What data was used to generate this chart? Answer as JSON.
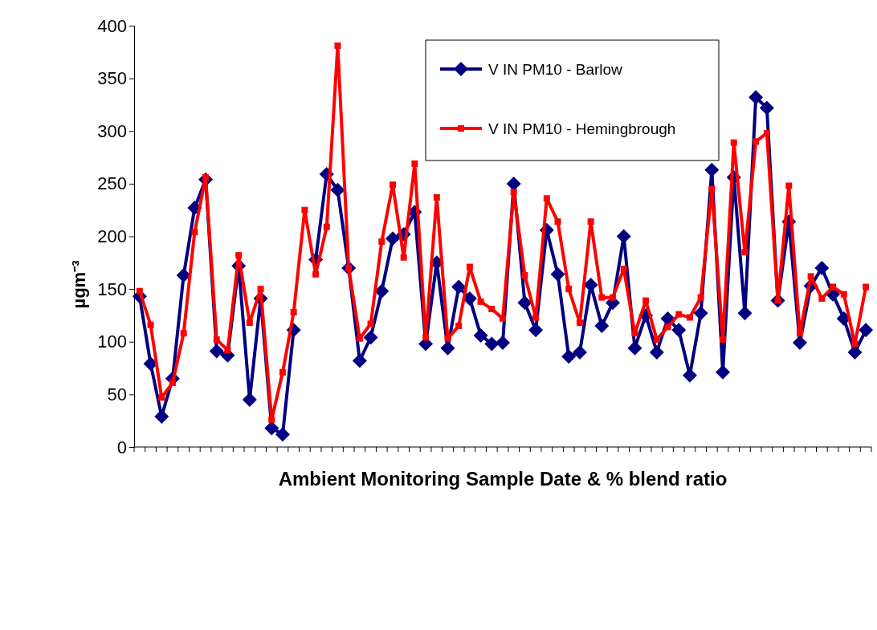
{
  "chart_data": {
    "type": "line",
    "xlabel": "Ambient Monitoring Sample Date & % blend ratio",
    "ylabel": "µgm⁻³",
    "categories": [
      null,
      null,
      null,
      null,
      null,
      null,
      null,
      null,
      null,
      null,
      null,
      null,
      null,
      null,
      null,
      null,
      null,
      null,
      null,
      null,
      null,
      null,
      null,
      null,
      null,
      null,
      null,
      null,
      null,
      null,
      null,
      null,
      null,
      null,
      null,
      null,
      null,
      null,
      null,
      null,
      null,
      null,
      null,
      null,
      null,
      null,
      null,
      null,
      null,
      null,
      null,
      null,
      null,
      null,
      null,
      null,
      null,
      null,
      null,
      null,
      null,
      null,
      null,
      null,
      null,
      null,
      null
    ],
    "series": [
      {
        "name": "V  IN PM10 - Barlow",
        "color": "#000080",
        "marker": "diamond",
        "values": [
          143,
          79,
          29,
          65,
          163,
          227,
          254,
          91,
          87,
          172,
          45,
          141,
          18,
          12,
          111,
          null,
          178,
          259,
          244,
          170,
          82,
          104,
          148,
          198,
          202,
          223,
          98,
          175,
          94,
          152,
          141,
          106,
          98,
          99,
          250,
          137,
          111,
          206,
          164,
          86,
          90,
          154,
          115,
          137,
          200,
          94,
          125,
          90,
          122,
          111,
          68,
          127,
          263,
          71,
          256,
          127,
          332,
          322,
          139,
          214,
          99,
          153,
          170,
          145,
          122,
          90,
          111
        ]
      },
      {
        "name": "V  IN PM10 - Hemingbrough",
        "color": "#ff0000",
        "marker": "square",
        "values": [
          148,
          116,
          47,
          61,
          108,
          204,
          256,
          102,
          92,
          182,
          118,
          150,
          26,
          71,
          128,
          225,
          164,
          209,
          381,
          170,
          103,
          117,
          195,
          249,
          180,
          269,
          104,
          237,
          103,
          115,
          171,
          138,
          131,
          122,
          242,
          163,
          123,
          236,
          214,
          150,
          118,
          214,
          142,
          142,
          169,
          108,
          139,
          102,
          114,
          126,
          123,
          142,
          245,
          102,
          289,
          185,
          290,
          298,
          139,
          248,
          108,
          162,
          141,
          152,
          145,
          98,
          152
        ]
      }
    ],
    "ylim": [
      0,
      400
    ],
    "yticks": [
      0,
      50,
      100,
      150,
      200,
      250,
      300,
      350,
      400
    ],
    "grid": false,
    "legend": "top right",
    "line_style": "solid"
  }
}
